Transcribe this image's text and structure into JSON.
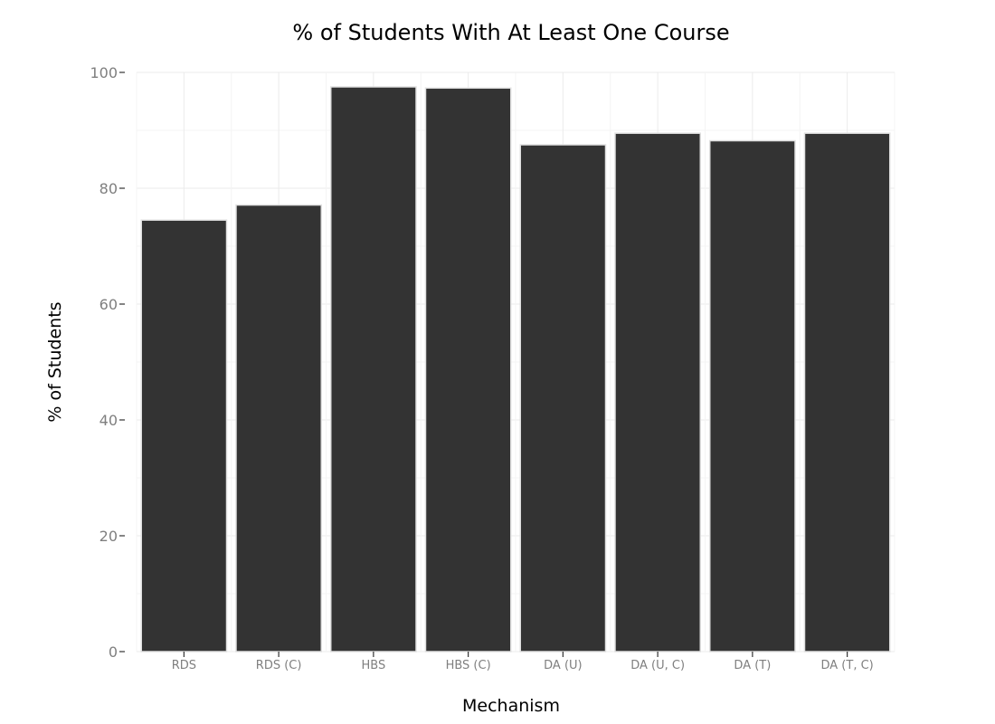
{
  "chart_data": {
    "type": "bar",
    "title": "% of Students With At Least One Course",
    "xlabel": "Mechanism",
    "ylabel": "% of Students",
    "categories": [
      "RDS",
      "RDS (C)",
      "HBS",
      "HBS (C)",
      "DA (U)",
      "DA (U, C)",
      "DA (T)",
      "DA (T, C)"
    ],
    "values": [
      74.5,
      77.1,
      97.5,
      97.3,
      87.5,
      89.5,
      88.2,
      89.5
    ],
    "ylim": [
      0,
      100
    ],
    "yticks": [
      0,
      20,
      40,
      60,
      80,
      100
    ],
    "grid": true,
    "legend": "none",
    "colors": {
      "bar_fill": "#333333",
      "bar_stroke": "#e0e0e0",
      "grid_major": "#ebebeb",
      "grid_minor": "#f4f4f4",
      "tick_mark": "#333333",
      "tick_label": "#7f7f7f",
      "background": "#ffffff"
    }
  }
}
